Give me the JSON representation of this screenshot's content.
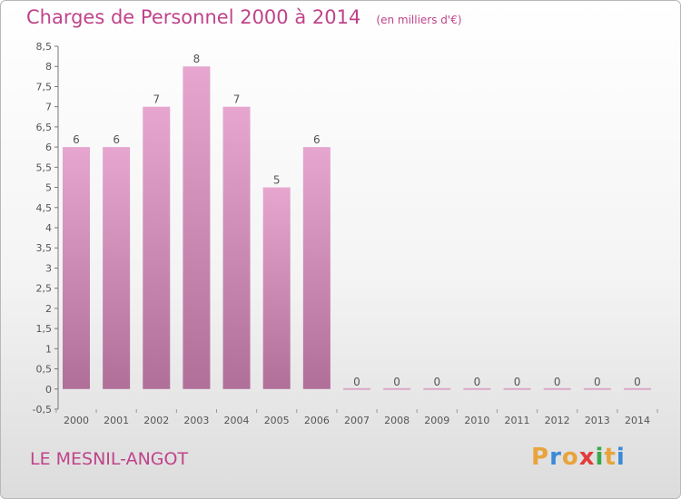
{
  "header": {
    "title": "Charges de Personnel 2000 à 2014",
    "subtitle": "(en milliers d'€)"
  },
  "footer": {
    "commune": "LE MESNIL-ANGOT",
    "brand": [
      "P",
      "r",
      "o",
      "x",
      "i",
      "t",
      "i"
    ],
    "brand_colors": [
      "#e8a43c",
      "#3a8ad8",
      "#e8a43c",
      "#e23c3c",
      "#39a84a",
      "#e8a43c",
      "#3a8ad8"
    ]
  },
  "chart_data": {
    "type": "bar",
    "title": "Charges de Personnel 2000 à 2014",
    "subtitle": "(en milliers d'€)",
    "categories": [
      "2000",
      "2001",
      "2002",
      "2003",
      "2004",
      "2005",
      "2006",
      "2007",
      "2008",
      "2009",
      "2010",
      "2011",
      "2012",
      "2013",
      "2014"
    ],
    "values": [
      6,
      6,
      7,
      8,
      7,
      5,
      6,
      0,
      0,
      0,
      0,
      0,
      0,
      0,
      0
    ],
    "value_labels": [
      "6",
      "6",
      "7",
      "8",
      "7",
      "5",
      "6",
      "0",
      "0",
      "0",
      "0",
      "0",
      "0",
      "0",
      "0"
    ],
    "ylim": [
      -0.5,
      8.5
    ],
    "yticks": [
      -0.5,
      0,
      0.5,
      1,
      1.5,
      2,
      2.5,
      3,
      3.5,
      4,
      4.5,
      5,
      5.5,
      6,
      6.5,
      7,
      7.5,
      8,
      8.5
    ],
    "ytick_labels": [
      "-0,5",
      "0",
      "0,5",
      "1",
      "1,5",
      "2",
      "2,5",
      "3",
      "3,5",
      "4",
      "4,5",
      "5",
      "5,5",
      "6",
      "6,5",
      "7",
      "7,5",
      "8",
      "8,5"
    ],
    "grid": false,
    "bar_color_top": "#e6a6cf",
    "bar_color_bottom": "#b06f98"
  }
}
